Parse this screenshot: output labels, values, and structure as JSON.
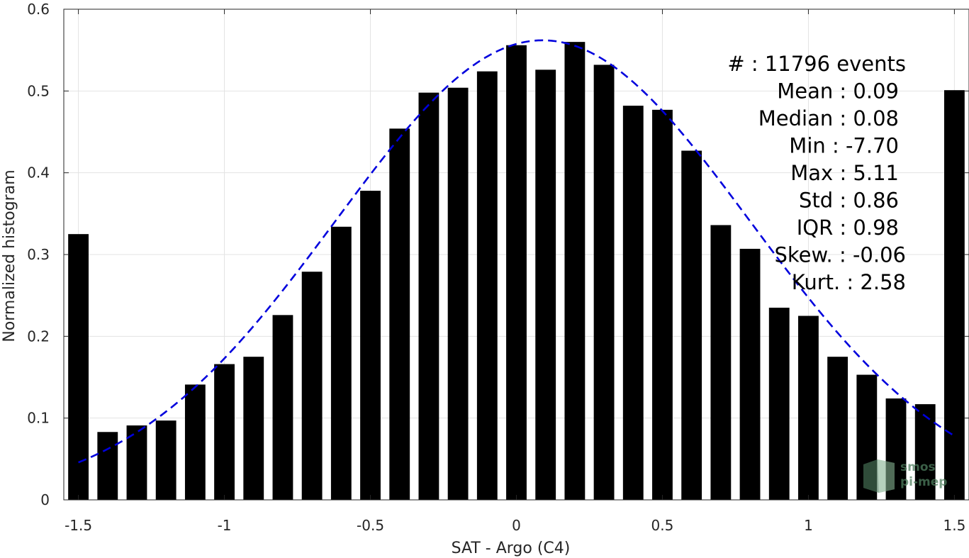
{
  "chart_data": {
    "type": "bar",
    "title": "",
    "xlabel": "SAT - Argo (C4)",
    "ylabel": "Normalized histogram",
    "xlim": [
      -1.55,
      1.55
    ],
    "ylim": [
      0,
      0.6
    ],
    "grid": true,
    "x_ticks": [
      -1.5,
      -1,
      -0.5,
      0,
      0.5,
      1,
      1.5
    ],
    "x_tick_labels": [
      "-1.5",
      "-1",
      "-0.5",
      "0",
      "0.5",
      "1",
      "1.5"
    ],
    "y_ticks": [
      0,
      0.1,
      0.2,
      0.3,
      0.4,
      0.5,
      0.6
    ],
    "y_tick_labels": [
      "0",
      "0.1",
      "0.2",
      "0.3",
      "0.4",
      "0.5",
      "0.6"
    ],
    "bar_width": 0.07,
    "bars": {
      "x": [
        -1.5,
        -1.4,
        -1.3,
        -1.2,
        -1.1,
        -1.0,
        -0.9,
        -0.8,
        -0.7,
        -0.6,
        -0.5,
        -0.4,
        -0.3,
        -0.2,
        -0.1,
        0.0,
        0.1,
        0.2,
        0.3,
        0.4,
        0.5,
        0.6,
        0.7,
        0.8,
        0.9,
        1.0,
        1.1,
        1.2,
        1.3,
        1.4,
        1.5
      ],
      "values": [
        0.325,
        0.083,
        0.091,
        0.097,
        0.141,
        0.166,
        0.175,
        0.226,
        0.279,
        0.334,
        0.378,
        0.454,
        0.498,
        0.504,
        0.524,
        0.556,
        0.526,
        0.56,
        0.532,
        0.482,
        0.477,
        0.427,
        0.336,
        0.307,
        0.235,
        0.225,
        0.175,
        0.153,
        0.124,
        0.117,
        0.501
      ],
      "color": "#000000"
    },
    "fit_curve": {
      "style": "dashed",
      "color": "#0000dd",
      "mean": 0.09,
      "std": 0.71,
      "peak": 0.562,
      "x_range": [
        -1.5,
        1.5
      ]
    },
    "annotations": [
      {
        "label": "#  :",
        "value": "11796 events"
      },
      {
        "label": "Mean :",
        "value": "0.09"
      },
      {
        "label": "Median :",
        "value": "0.08"
      },
      {
        "label": "Min :",
        "value": "-7.70"
      },
      {
        "label": "Max :",
        "value": "5.11"
      },
      {
        "label": "Std :",
        "value": "0.86"
      },
      {
        "label": "IQR :",
        "value": "0.98"
      },
      {
        "label": "Skew. :",
        "value": "-0.06"
      },
      {
        "label": "Kurt. :",
        "value": "2.58"
      }
    ],
    "logo": {
      "line1": "smos",
      "line2": "pi-mep",
      "color": "#4f7f5f"
    }
  }
}
